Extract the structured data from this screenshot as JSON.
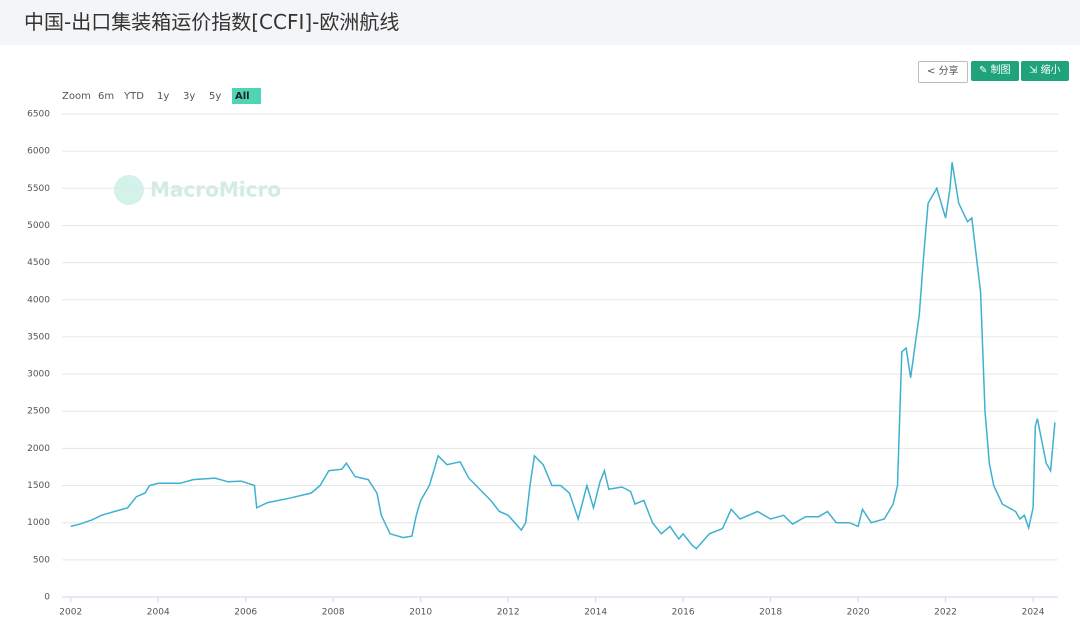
{
  "header": {
    "title": "中国-出口集装箱运价指数[CCFI]-欧洲航线"
  },
  "toolbar": {
    "share": "分享",
    "draw": "制图",
    "shrink": "缩小"
  },
  "zoom": {
    "label": "Zoom",
    "options": [
      "6m",
      "YTD",
      "1y",
      "3y",
      "5y",
      "All"
    ],
    "active": "All"
  },
  "watermark": "MacroMicro",
  "chart_data": {
    "type": "line",
    "color": "#3fb1d0",
    "grid": true,
    "xlim": [
      2001.8,
      2024.57
    ],
    "xticks": [
      2002,
      2004,
      2006,
      2008,
      2010,
      2012,
      2014,
      2016,
      2018,
      2020,
      2022,
      2024
    ],
    "ylim": [
      0,
      6500
    ],
    "yticks": [
      0,
      500,
      1000,
      1500,
      2000,
      2500,
      3000,
      3500,
      4000,
      4500,
      5000,
      5500,
      6000,
      6500
    ],
    "x": [
      2002.0,
      2002.2,
      2002.5,
      2002.7,
      2003.0,
      2003.3,
      2003.5,
      2003.7,
      2003.8,
      2004.0,
      2004.5,
      2004.8,
      2005.3,
      2005.6,
      2005.9,
      2006.2,
      2006.25,
      2006.5,
      2007.0,
      2007.5,
      2007.7,
      2007.9,
      2008.2,
      2008.3,
      2008.5,
      2008.8,
      2009.0,
      2009.1,
      2009.3,
      2009.6,
      2009.8,
      2009.9,
      2010.0,
      2010.2,
      2010.4,
      2010.6,
      2010.9,
      2011.1,
      2011.3,
      2011.6,
      2011.8,
      2012.0,
      2012.3,
      2012.4,
      2012.5,
      2012.6,
      2012.8,
      2013.0,
      2013.2,
      2013.4,
      2013.6,
      2013.8,
      2013.95,
      2014.1,
      2014.2,
      2014.3,
      2014.6,
      2014.8,
      2014.9,
      2015.1,
      2015.3,
      2015.5,
      2015.7,
      2015.9,
      2016.0,
      2016.2,
      2016.3,
      2016.6,
      2016.9,
      2017.1,
      2017.3,
      2017.7,
      2018.0,
      2018.3,
      2018.5,
      2018.8,
      2019.1,
      2019.3,
      2019.5,
      2019.8,
      2020.0,
      2020.1,
      2020.3,
      2020.6,
      2020.8,
      2020.9,
      2021.0,
      2021.1,
      2021.2,
      2021.4,
      2021.5,
      2021.6,
      2021.8,
      2022.0,
      2022.1,
      2022.15,
      2022.3,
      2022.5,
      2022.6,
      2022.8,
      2022.9,
      2023.0,
      2023.1,
      2023.3,
      2023.6,
      2023.7,
      2023.8,
      2023.9,
      2024.0,
      2024.05,
      2024.1,
      2024.2,
      2024.3,
      2024.4,
      2024.5
    ],
    "values": [
      950,
      980,
      1040,
      1100,
      1150,
      1200,
      1350,
      1400,
      1500,
      1530,
      1530,
      1580,
      1600,
      1550,
      1560,
      1500,
      1200,
      1270,
      1330,
      1400,
      1500,
      1700,
      1720,
      1800,
      1620,
      1580,
      1400,
      1100,
      850,
      800,
      820,
      1100,
      1300,
      1500,
      1900,
      1780,
      1820,
      1600,
      1480,
      1300,
      1150,
      1100,
      900,
      1000,
      1500,
      1900,
      1780,
      1500,
      1500,
      1400,
      1050,
      1500,
      1200,
      1550,
      1700,
      1450,
      1480,
      1420,
      1250,
      1300,
      1000,
      850,
      950,
      780,
      850,
      700,
      650,
      850,
      920,
      1180,
      1050,
      1150,
      1050,
      1100,
      980,
      1080,
      1080,
      1150,
      1000,
      1000,
      950,
      1180,
      1000,
      1050,
      1250,
      1500,
      3300,
      3350,
      2950,
      3800,
      4600,
      5300,
      5500,
      5100,
      5500,
      5850,
      5300,
      5050,
      5100,
      4100,
      2500,
      1800,
      1500,
      1250,
      1150,
      1050,
      1100,
      930,
      1200,
      2300,
      2400,
      2100,
      1800,
      1700,
      2350
    ]
  }
}
